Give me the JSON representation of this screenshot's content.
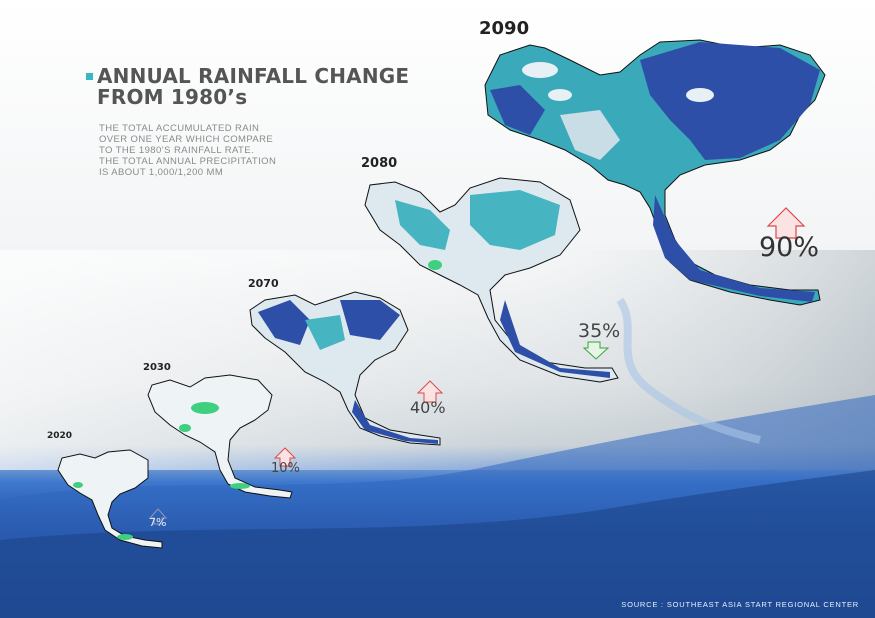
{
  "title": {
    "line1": "ANNUAL RAINFALL CHANGE",
    "line2": "FROM 1980’s"
  },
  "description": [
    "THE TOTAL ACCUMULATED RAIN",
    "OVER ONE YEAR WHICH COMPARE",
    "TO THE 1980’S RAINFALL RATE.",
    "THE TOTAL ANNUAL PRECIPITATION",
    "IS ABOUT 1,000/1,200 MM"
  ],
  "maps": [
    {
      "year": "2020",
      "change": "7%",
      "direction": "up"
    },
    {
      "year": "2030",
      "change": "10%",
      "direction": "up"
    },
    {
      "year": "2070",
      "change": "40%",
      "direction": "up"
    },
    {
      "year": "2080",
      "change": "35%",
      "direction": "down"
    },
    {
      "year": "2090",
      "change": "90%",
      "direction": "up"
    }
  ],
  "source": "SOURCE : SOUTHEAST ASIA START REGIONAL CENTER",
  "colors": {
    "accent": "#3ab7c4",
    "dark_blue": "#2e4fa8",
    "teal": "#47b4c2",
    "light_blue": "#c9dde6",
    "green": "#3ecf7f",
    "up_arrow": "#d94a4a",
    "down_arrow": "#3aa33a",
    "sea": "#2f6fcf"
  }
}
